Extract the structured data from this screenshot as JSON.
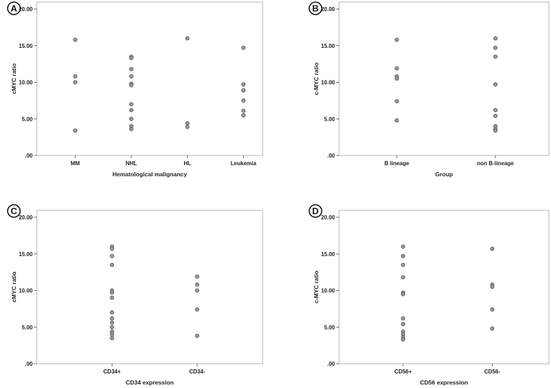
{
  "chart_data": [
    {
      "type": "scatter",
      "panel_label": "A",
      "xlabel": "Hematological malignancy",
      "ylabel": "cMYC ratio",
      "ylim": [
        0,
        20
      ],
      "yticks": [
        ".00",
        "5.00",
        "10.00",
        "15.00",
        "20.00"
      ],
      "categories": [
        "MM",
        "NHL",
        "HL",
        "Leukemia"
      ],
      "points": [
        {
          "x": "MM",
          "y": 15.8
        },
        {
          "x": "MM",
          "y": 10.8
        },
        {
          "x": "MM",
          "y": 10.0
        },
        {
          "x": "MM",
          "y": 3.4
        },
        {
          "x": "NHL",
          "y": 13.5
        },
        {
          "x": "NHL",
          "y": 13.3
        },
        {
          "x": "NHL",
          "y": 11.8
        },
        {
          "x": "NHL",
          "y": 10.8
        },
        {
          "x": "NHL",
          "y": 9.8
        },
        {
          "x": "NHL",
          "y": 9.6
        },
        {
          "x": "NHL",
          "y": 7.0
        },
        {
          "x": "NHL",
          "y": 6.2
        },
        {
          "x": "NHL",
          "y": 5.0
        },
        {
          "x": "NHL",
          "y": 4.0
        },
        {
          "x": "NHL",
          "y": 3.6
        },
        {
          "x": "HL",
          "y": 16.0
        },
        {
          "x": "HL",
          "y": 4.4
        },
        {
          "x": "HL",
          "y": 3.9
        },
        {
          "x": "Leukemia",
          "y": 14.7
        },
        {
          "x": "Leukemia",
          "y": 9.7
        },
        {
          "x": "Leukemia",
          "y": 8.9
        },
        {
          "x": "Leukemia",
          "y": 7.5
        },
        {
          "x": "Leukemia",
          "y": 6.1
        },
        {
          "x": "Leukemia",
          "y": 5.5
        }
      ]
    },
    {
      "type": "scatter",
      "panel_label": "B",
      "xlabel": "Group",
      "ylabel": "c-MYC ratio",
      "ylim": [
        0,
        20
      ],
      "yticks": [
        ".00",
        "5.00",
        "10.00",
        "15.00",
        "20.00"
      ],
      "categories": [
        "B lineage",
        "non B-lineage"
      ],
      "points": [
        {
          "x": "B lineage",
          "y": 15.8
        },
        {
          "x": "B lineage",
          "y": 11.9
        },
        {
          "x": "B lineage",
          "y": 10.8
        },
        {
          "x": "B lineage",
          "y": 10.5
        },
        {
          "x": "B lineage",
          "y": 7.4
        },
        {
          "x": "B lineage",
          "y": 4.8
        },
        {
          "x": "non B-lineage",
          "y": 16.0
        },
        {
          "x": "non B-lineage",
          "y": 14.7
        },
        {
          "x": "non B-lineage",
          "y": 13.5
        },
        {
          "x": "non B-lineage",
          "y": 9.7
        },
        {
          "x": "non B-lineage",
          "y": 6.2
        },
        {
          "x": "non B-lineage",
          "y": 5.4
        },
        {
          "x": "non B-lineage",
          "y": 4.0
        },
        {
          "x": "non B-lineage",
          "y": 3.6
        },
        {
          "x": "non B-lineage",
          "y": 3.4
        }
      ]
    },
    {
      "type": "scatter",
      "panel_label": "C",
      "xlabel": "CD34 expression",
      "ylabel": "cMYC ratio",
      "ylim": [
        0,
        20
      ],
      "yticks": [
        ".00",
        "5.00",
        "10.00",
        "15.00",
        "20.00"
      ],
      "categories": [
        "CD34+",
        "CD34-"
      ],
      "points": [
        {
          "x": "CD34+",
          "y": 16.0
        },
        {
          "x": "CD34+",
          "y": 15.7
        },
        {
          "x": "CD34+",
          "y": 14.7
        },
        {
          "x": "CD34+",
          "y": 13.5
        },
        {
          "x": "CD34+",
          "y": 10.0
        },
        {
          "x": "CD34+",
          "y": 9.7
        },
        {
          "x": "CD34+",
          "y": 9.0
        },
        {
          "x": "CD34+",
          "y": 7.0
        },
        {
          "x": "CD34+",
          "y": 6.2
        },
        {
          "x": "CD34+",
          "y": 5.6
        },
        {
          "x": "CD34+",
          "y": 5.0
        },
        {
          "x": "CD34+",
          "y": 4.4
        },
        {
          "x": "CD34+",
          "y": 4.0
        },
        {
          "x": "CD34+",
          "y": 3.5
        },
        {
          "x": "CD34-",
          "y": 11.9
        },
        {
          "x": "CD34-",
          "y": 10.8
        },
        {
          "x": "CD34-",
          "y": 10.0
        },
        {
          "x": "CD34-",
          "y": 7.4
        },
        {
          "x": "CD34-",
          "y": 3.8
        }
      ]
    },
    {
      "type": "scatter",
      "panel_label": "D",
      "xlabel": "CD56 expression",
      "ylabel": "c-MYC ratio",
      "ylim": [
        0,
        20
      ],
      "yticks": [
        ".00",
        "5.00",
        "10.00",
        "15.00",
        "20.00"
      ],
      "categories": [
        "CD56+",
        "CD56-"
      ],
      "points": [
        {
          "x": "CD56+",
          "y": 16.0
        },
        {
          "x": "CD56+",
          "y": 14.7
        },
        {
          "x": "CD56+",
          "y": 13.5
        },
        {
          "x": "CD56+",
          "y": 11.8
        },
        {
          "x": "CD56+",
          "y": 9.7
        },
        {
          "x": "CD56+",
          "y": 9.5
        },
        {
          "x": "CD56+",
          "y": 6.2
        },
        {
          "x": "CD56+",
          "y": 5.4
        },
        {
          "x": "CD56+",
          "y": 4.4
        },
        {
          "x": "CD56+",
          "y": 4.0
        },
        {
          "x": "CD56+",
          "y": 3.6
        },
        {
          "x": "CD56+",
          "y": 3.3
        },
        {
          "x": "CD56-",
          "y": 15.7
        },
        {
          "x": "CD56-",
          "y": 10.8
        },
        {
          "x": "CD56-",
          "y": 10.5
        },
        {
          "x": "CD56-",
          "y": 7.4
        },
        {
          "x": "CD56-",
          "y": 4.8
        }
      ]
    }
  ],
  "colors": {
    "frame": "#b5b5b5",
    "marker_fill": "#9a9a9a",
    "marker_stroke": "#555555"
  }
}
